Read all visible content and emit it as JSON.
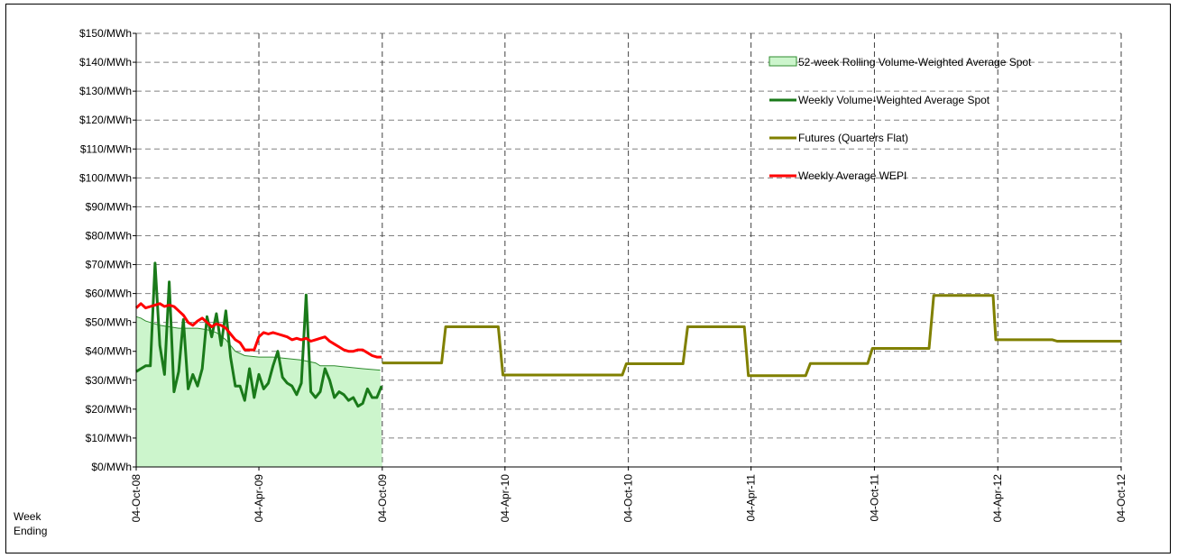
{
  "chart_data": {
    "type": "line",
    "title": "",
    "xlabel": [
      "Week",
      "Ending"
    ],
    "ylabel": "",
    "ylim": [
      0,
      150
    ],
    "y_ticks": [
      "$0/MWh",
      "$10/MWh",
      "$20/MWh",
      "$30/MWh",
      "$40/MWh",
      "$50/MWh",
      "$60/MWh",
      "$70/MWh",
      "$80/MWh",
      "$90/MWh",
      "$100/MWh",
      "$110/MWh",
      "$120/MWh",
      "$130/MWh",
      "$140/MWh",
      "$150/MWh"
    ],
    "x_range": [
      "2008-10-04",
      "2012-10-04"
    ],
    "x_ticks": [
      {
        "label": "04-Oct-08",
        "date": "2008-10-04"
      },
      {
        "label": "04-Apr-09",
        "date": "2009-04-04"
      },
      {
        "label": "04-Oct-09",
        "date": "2009-10-04"
      },
      {
        "label": "04-Apr-10",
        "date": "2010-04-04"
      },
      {
        "label": "04-Oct-10",
        "date": "2010-10-04"
      },
      {
        "label": "04-Apr-11",
        "date": "2011-04-04"
      },
      {
        "label": "04-Oct-11",
        "date": "2011-10-04"
      },
      {
        "label": "04-Apr-12",
        "date": "2012-04-04"
      },
      {
        "label": "04-Oct-12",
        "date": "2012-10-04"
      }
    ],
    "grid": true,
    "legend_position": "top-right",
    "series": [
      {
        "name": "52-week Rolling Volume-Weighted Average Spot",
        "kind": "area",
        "color": "#ccf5cc",
        "stroke": "#2e8b2e",
        "points": [
          [
            "2008-10-04",
            52
          ],
          [
            "2008-10-11",
            51.5
          ],
          [
            "2008-10-18",
            50.5
          ],
          [
            "2008-10-25",
            50
          ],
          [
            "2008-11-01",
            49.5
          ],
          [
            "2008-11-08",
            49
          ],
          [
            "2008-11-22",
            48.5
          ],
          [
            "2008-12-06",
            48
          ],
          [
            "2008-12-20",
            48
          ],
          [
            "2009-01-03",
            48
          ],
          [
            "2009-01-17",
            47.5
          ],
          [
            "2009-01-31",
            46.5
          ],
          [
            "2009-02-14",
            44
          ],
          [
            "2009-02-28",
            40
          ],
          [
            "2009-03-14",
            38.5
          ],
          [
            "2009-04-04",
            38
          ],
          [
            "2009-04-25",
            38
          ],
          [
            "2009-05-16",
            37.5
          ],
          [
            "2009-06-06",
            37
          ],
          [
            "2009-06-27",
            36
          ],
          [
            "2009-07-04",
            35
          ],
          [
            "2009-07-25",
            35
          ],
          [
            "2009-08-15",
            34.5
          ],
          [
            "2009-09-05",
            34
          ],
          [
            "2009-10-01",
            33.5
          ],
          [
            "2009-10-04",
            0
          ]
        ]
      },
      {
        "name": "Weekly Volume-Weighted Average Spot",
        "kind": "line",
        "color": "#1a7a1a",
        "points": [
          [
            "2008-10-04",
            33
          ],
          [
            "2008-10-11",
            34
          ],
          [
            "2008-10-18",
            35
          ],
          [
            "2008-10-25",
            35
          ],
          [
            "2008-11-01",
            70.5
          ],
          [
            "2008-11-08",
            42
          ],
          [
            "2008-11-15",
            32
          ],
          [
            "2008-11-22",
            64
          ],
          [
            "2008-11-29",
            26
          ],
          [
            "2008-12-06",
            33
          ],
          [
            "2008-12-13",
            51
          ],
          [
            "2008-12-20",
            27
          ],
          [
            "2008-12-27",
            32
          ],
          [
            "2009-01-03",
            28
          ],
          [
            "2009-01-10",
            34
          ],
          [
            "2009-01-17",
            52
          ],
          [
            "2009-01-24",
            45
          ],
          [
            "2009-01-31",
            53
          ],
          [
            "2009-02-07",
            42
          ],
          [
            "2009-02-14",
            54
          ],
          [
            "2009-02-21",
            38
          ],
          [
            "2009-02-28",
            28
          ],
          [
            "2009-03-07",
            28
          ],
          [
            "2009-03-14",
            23
          ],
          [
            "2009-03-21",
            34
          ],
          [
            "2009-03-28",
            24
          ],
          [
            "2009-04-04",
            32
          ],
          [
            "2009-04-11",
            27
          ],
          [
            "2009-04-18",
            29
          ],
          [
            "2009-04-25",
            35
          ],
          [
            "2009-05-02",
            40
          ],
          [
            "2009-05-09",
            31
          ],
          [
            "2009-05-16",
            29
          ],
          [
            "2009-05-23",
            28
          ],
          [
            "2009-05-30",
            25
          ],
          [
            "2009-06-06",
            29
          ],
          [
            "2009-06-13",
            59.5
          ],
          [
            "2009-06-20",
            26
          ],
          [
            "2009-06-27",
            24
          ],
          [
            "2009-07-04",
            26
          ],
          [
            "2009-07-11",
            34
          ],
          [
            "2009-07-18",
            30
          ],
          [
            "2009-07-25",
            24
          ],
          [
            "2009-08-01",
            26
          ],
          [
            "2009-08-08",
            25
          ],
          [
            "2009-08-15",
            23
          ],
          [
            "2009-08-22",
            24
          ],
          [
            "2009-08-29",
            21
          ],
          [
            "2009-09-05",
            22
          ],
          [
            "2009-09-12",
            27
          ],
          [
            "2009-09-19",
            24
          ],
          [
            "2009-09-26",
            24
          ],
          [
            "2009-10-03",
            28
          ]
        ]
      },
      {
        "name": "Futures (Quarters Flat)",
        "kind": "step",
        "color": "#808000",
        "points": [
          [
            "2009-10-04",
            36
          ],
          [
            "2009-12-31",
            36
          ],
          [
            "2010-01-06",
            48.5
          ],
          [
            "2010-03-25",
            48.5
          ],
          [
            "2010-04-01",
            31.8
          ],
          [
            "2010-09-25",
            31.8
          ],
          [
            "2010-10-01",
            35.7
          ],
          [
            "2010-12-24",
            35.7
          ],
          [
            "2010-12-31",
            48.5
          ],
          [
            "2011-03-25",
            48.5
          ],
          [
            "2011-03-31",
            31.6
          ],
          [
            "2011-06-24",
            31.6
          ],
          [
            "2011-07-01",
            35.8
          ],
          [
            "2011-09-24",
            35.8
          ],
          [
            "2011-10-01",
            41
          ],
          [
            "2011-12-24",
            41
          ],
          [
            "2011-12-31",
            59.3
          ],
          [
            "2012-03-28",
            59.3
          ],
          [
            "2012-04-01",
            44
          ],
          [
            "2012-06-24",
            44
          ],
          [
            "2012-07-01",
            43.5
          ],
          [
            "2012-10-04",
            43.5
          ]
        ]
      },
      {
        "name": "Weekly Average WEPI",
        "kind": "line",
        "color": "#ff0000",
        "points": [
          [
            "2008-10-04",
            55
          ],
          [
            "2008-10-11",
            56.5
          ],
          [
            "2008-10-18",
            55
          ],
          [
            "2008-10-25",
            55.5
          ],
          [
            "2008-11-01",
            56
          ],
          [
            "2008-11-08",
            56.5
          ],
          [
            "2008-11-15",
            55.5
          ],
          [
            "2008-11-22",
            56
          ],
          [
            "2008-11-29",
            55.5
          ],
          [
            "2008-12-06",
            54
          ],
          [
            "2008-12-13",
            52.5
          ],
          [
            "2008-12-20",
            50
          ],
          [
            "2008-12-27",
            49
          ],
          [
            "2009-01-03",
            50.5
          ],
          [
            "2009-01-10",
            51.5
          ],
          [
            "2009-01-17",
            50
          ],
          [
            "2009-01-24",
            48.5
          ],
          [
            "2009-01-31",
            49.5
          ],
          [
            "2009-02-07",
            49
          ],
          [
            "2009-02-14",
            48
          ],
          [
            "2009-02-21",
            46
          ],
          [
            "2009-02-28",
            44
          ],
          [
            "2009-03-07",
            43
          ],
          [
            "2009-03-14",
            40.5
          ],
          [
            "2009-03-21",
            40.5
          ],
          [
            "2009-03-28",
            40.5
          ],
          [
            "2009-04-04",
            45
          ],
          [
            "2009-04-11",
            46.5
          ],
          [
            "2009-04-18",
            46
          ],
          [
            "2009-04-25",
            46.5
          ],
          [
            "2009-05-02",
            46
          ],
          [
            "2009-05-09",
            45.5
          ],
          [
            "2009-05-16",
            45
          ],
          [
            "2009-05-23",
            44
          ],
          [
            "2009-05-30",
            44.5
          ],
          [
            "2009-06-06",
            44
          ],
          [
            "2009-06-13",
            44.5
          ],
          [
            "2009-06-20",
            43.5
          ],
          [
            "2009-06-27",
            44
          ],
          [
            "2009-07-04",
            44.5
          ],
          [
            "2009-07-11",
            45
          ],
          [
            "2009-07-18",
            43.5
          ],
          [
            "2009-07-25",
            42.5
          ],
          [
            "2009-08-01",
            41.5
          ],
          [
            "2009-08-08",
            40.5
          ],
          [
            "2009-08-15",
            40
          ],
          [
            "2009-08-22",
            40
          ],
          [
            "2009-08-29",
            40.5
          ],
          [
            "2009-09-05",
            40.5
          ],
          [
            "2009-09-12",
            39.5
          ],
          [
            "2009-09-19",
            38.5
          ],
          [
            "2009-09-26",
            38
          ],
          [
            "2009-10-03",
            38
          ]
        ]
      }
    ]
  }
}
